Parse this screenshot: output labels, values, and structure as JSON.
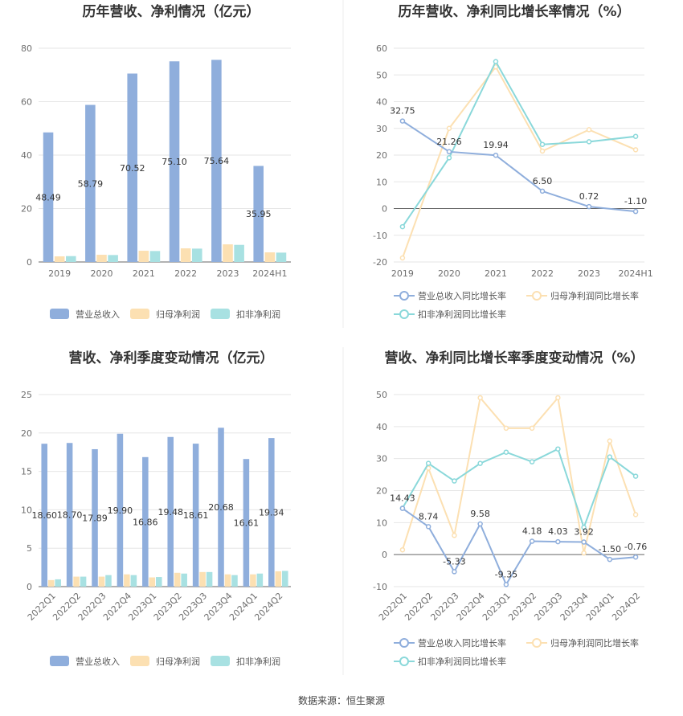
{
  "page": {
    "source_text": "数据来源：恒生聚源"
  },
  "colors": {
    "revenue": "#8FAEDC",
    "net_profit": "#FCE0B2",
    "deducted": "#A8E1E2",
    "revenue_line": "#8FAEDC",
    "net_profit_line": "#FCE0B2",
    "deducted_line": "#8AD8DA"
  },
  "legend": {
    "bar": [
      "营业总收入",
      "归母净利润",
      "扣非净利润"
    ],
    "line": [
      "营业总收入同比增长率",
      "归母净利润同比增长率",
      "扣非净利润同比增长率"
    ]
  },
  "chart_data": [
    {
      "id": "annual_bar",
      "type": "bar",
      "title": "历年营收、净利情况（亿元）",
      "categories": [
        "2019",
        "2020",
        "2021",
        "2022",
        "2023",
        "2024H1"
      ],
      "ylim": [
        0,
        80
      ],
      "yticks": [
        0,
        20,
        40,
        60,
        80
      ],
      "series": [
        {
          "name": "营业总收入",
          "values": [
            48.49,
            58.79,
            70.52,
            75.1,
            75.64,
            35.95
          ],
          "labels": [
            "48.49",
            "58.79",
            "70.52",
            "75.10",
            "75.64",
            "35.95"
          ]
        },
        {
          "name": "归母净利润",
          "values": [
            2.1,
            2.7,
            4.2,
            5.1,
            6.6,
            3.6
          ]
        },
        {
          "name": "扣非净利润",
          "values": [
            2.2,
            2.6,
            4.1,
            5.0,
            6.4,
            3.5
          ]
        }
      ]
    },
    {
      "id": "annual_line",
      "type": "line",
      "title": "历年营收、净利同比增长率情况（%）",
      "categories": [
        "2019",
        "2020",
        "2021",
        "2022",
        "2023",
        "2024H1"
      ],
      "ylim": [
        -20,
        60
      ],
      "yticks": [
        -20,
        -10,
        0,
        10,
        20,
        30,
        40,
        50,
        60
      ],
      "series": [
        {
          "name": "营业总收入同比增长率",
          "values": [
            32.75,
            21.26,
            19.94,
            6.5,
            0.72,
            -1.1
          ],
          "labels": [
            "32.75",
            "21.26",
            "19.94",
            "6.50",
            "0.72",
            "-1.10"
          ]
        },
        {
          "name": "归母净利润同比增长率",
          "values": [
            -18.5,
            30.0,
            53.0,
            21.5,
            29.5,
            22.0
          ]
        },
        {
          "name": "扣非净利润同比增长率",
          "values": [
            -6.8,
            19.0,
            55.0,
            24.0,
            25.0,
            27.0
          ]
        }
      ]
    },
    {
      "id": "quarter_bar",
      "type": "bar",
      "title": "营收、净利季度变动情况（亿元）",
      "categories": [
        "2022Q1",
        "2022Q2",
        "2022Q3",
        "2022Q4",
        "2023Q1",
        "2023Q2",
        "2023Q3",
        "2023Q4",
        "2024Q1",
        "2024Q2"
      ],
      "ylim": [
        0,
        25
      ],
      "yticks": [
        0,
        5,
        10,
        15,
        20,
        25
      ],
      "series": [
        {
          "name": "营业总收入",
          "values": [
            18.6,
            18.7,
            17.89,
            19.9,
            16.86,
            19.48,
            18.61,
            20.68,
            16.61,
            19.34
          ],
          "labels": [
            "18.60",
            "18.70",
            "17.89",
            "19.90",
            "16.86",
            "19.48",
            "18.61",
            "20.68",
            "16.61",
            "19.34"
          ]
        },
        {
          "name": "归母净利润",
          "values": [
            0.85,
            1.3,
            1.3,
            1.6,
            1.2,
            1.8,
            1.9,
            1.6,
            1.6,
            2.0
          ]
        },
        {
          "name": "扣非净利润",
          "values": [
            0.95,
            1.3,
            1.5,
            1.5,
            1.25,
            1.7,
            1.9,
            1.5,
            1.7,
            2.05
          ]
        }
      ]
    },
    {
      "id": "quarter_line",
      "type": "line",
      "title": "营收、净利同比增长率季度变动情况（%）",
      "categories": [
        "2022Q1",
        "2022Q2",
        "2022Q3",
        "2022Q4",
        "2023Q1",
        "2023Q2",
        "2023Q3",
        "2023Q4",
        "2024Q1",
        "2024Q2"
      ],
      "ylim": [
        -10,
        50
      ],
      "yticks": [
        -10,
        0,
        10,
        20,
        30,
        40,
        50
      ],
      "series": [
        {
          "name": "营业总收入同比增长率",
          "values": [
            14.43,
            8.74,
            -5.33,
            9.58,
            -9.35,
            4.18,
            4.03,
            3.92,
            -1.5,
            -0.76
          ],
          "labels": [
            "14.43",
            "8.74",
            "-5.33",
            "9.58",
            "-9.35",
            "4.18",
            "4.03",
            "3.92",
            "-1.50",
            "-0.76"
          ]
        },
        {
          "name": "归母净利润同比增长率",
          "values": [
            1.5,
            27.0,
            6.0,
            49.0,
            39.5,
            39.5,
            49.0,
            0.5,
            35.5,
            12.5
          ]
        },
        {
          "name": "扣非净利润同比增长率",
          "values": [
            14.5,
            28.5,
            23.0,
            28.5,
            32.0,
            29.0,
            33.0,
            8.5,
            30.5,
            24.5
          ]
        }
      ]
    }
  ]
}
